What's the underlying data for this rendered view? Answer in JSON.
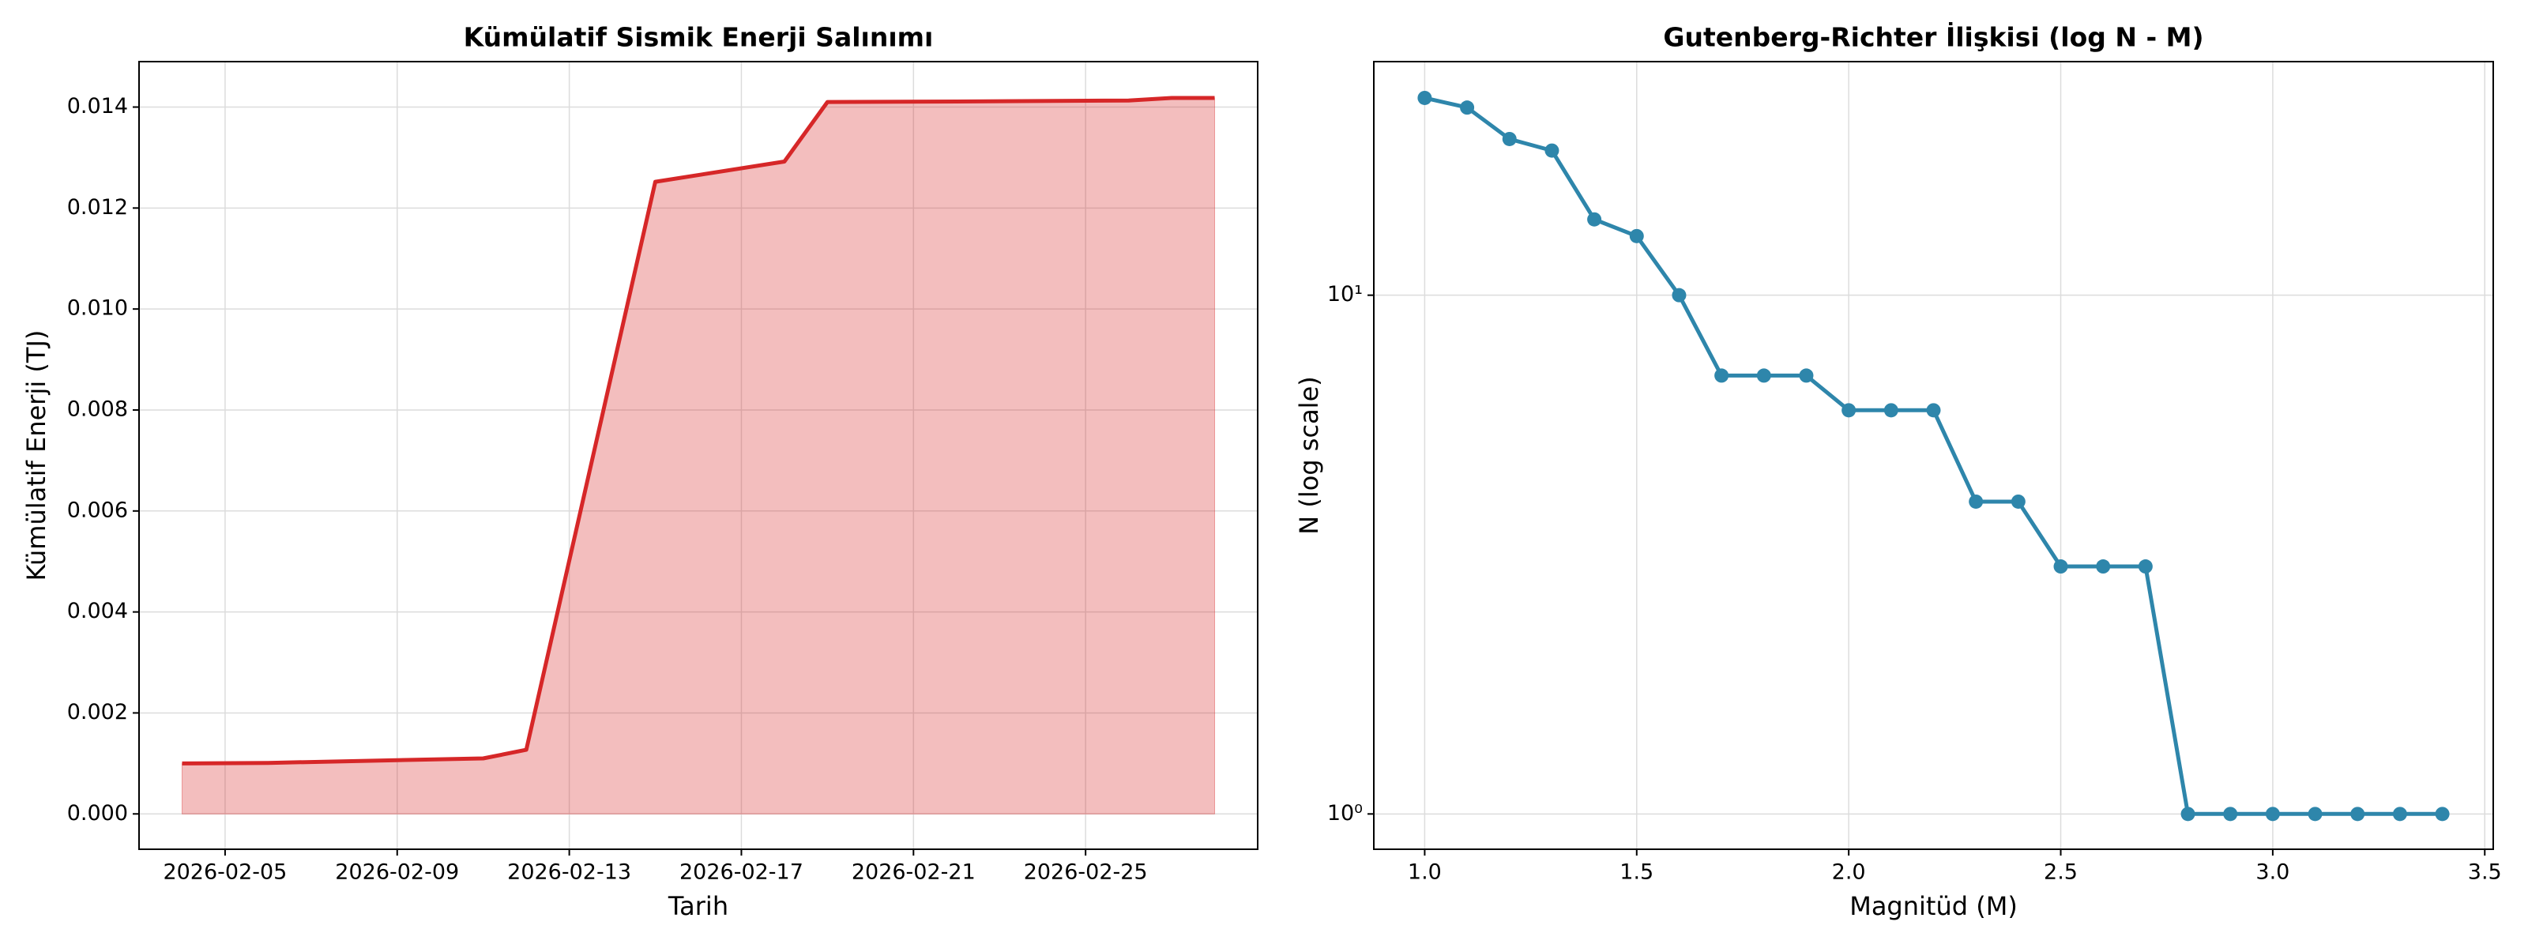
{
  "chart_data": [
    {
      "type": "area",
      "title": "Kümülatif Sismik Enerji Salınımı",
      "xlabel": "Tarih",
      "ylabel": "Kümülatif Enerji (TJ)",
      "x": [
        "2026-02-04",
        "2026-02-06",
        "2026-02-11",
        "2026-02-12",
        "2026-02-15",
        "2026-02-18",
        "2026-02-19",
        "2026-02-22",
        "2026-02-26",
        "2026-02-27",
        "2026-02-28"
      ],
      "values": [
        0.001,
        0.00101,
        0.0011,
        0.00127,
        0.01252,
        0.01292,
        0.0141,
        0.01411,
        0.01413,
        0.01418,
        0.01418
      ],
      "color": "#d62728",
      "xlim": [
        "2026-02-03",
        "2026-03-01"
      ],
      "xticks": [
        "2026-02-05",
        "2026-02-09",
        "2026-02-13",
        "2026-02-17",
        "2026-02-21",
        "2026-02-25"
      ],
      "ylim": [
        -0.0007,
        0.0149
      ],
      "yticks": [
        {
          "value": 0,
          "label": "0.000"
        },
        0.002,
        0.004,
        0.006,
        0.008,
        {
          "value": 0.01,
          "label": "0.010"
        },
        0.012,
        0.014
      ],
      "grid": true,
      "log_y": false
    },
    {
      "type": "line",
      "title": "Gutenberg-Richter İlişkisi (log N - M)",
      "xlabel": "Magnitüd (M)",
      "ylabel": "N (log scale)",
      "x": [
        1.0,
        1.1,
        1.2,
        1.3,
        1.4,
        1.5,
        1.6,
        1.7,
        1.8,
        1.9,
        2.0,
        2.1,
        2.2,
        2.3,
        2.4,
        2.5,
        2.6,
        2.7,
        2.8,
        2.9,
        3.0,
        3.1,
        3.2,
        3.3,
        3.4
      ],
      "values": [
        24,
        23,
        20,
        19,
        14,
        13,
        10,
        7,
        7,
        7,
        6,
        6,
        6,
        4,
        4,
        3,
        3,
        3,
        1,
        1,
        1,
        1,
        1,
        1,
        1
      ],
      "color": "#2e86ab",
      "xlim": [
        0.88,
        3.52
      ],
      "xticks": [
        {
          "value": 1,
          "label": "1.0"
        },
        1.5,
        {
          "value": 2,
          "label": "2.0"
        },
        2.5,
        {
          "value": 3,
          "label": "3.0"
        },
        3.5
      ],
      "ylim": [
        0.855,
        28.2
      ],
      "yticks": [
        {
          "value": 1,
          "label": "10⁰"
        },
        {
          "value": 10,
          "label": "10¹"
        }
      ],
      "grid": true,
      "log_y": true
    }
  ]
}
